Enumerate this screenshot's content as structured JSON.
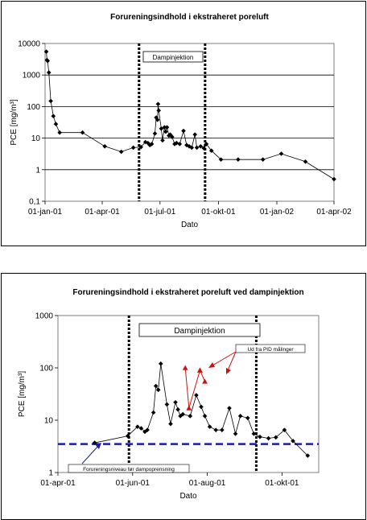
{
  "chart_data": [
    {
      "type": "line",
      "title": "Forureningsindhold i ekstraheret poreluft",
      "xlabel": "Dato",
      "ylabel": "PCE [mg/m³]",
      "yscale": "log",
      "ylim": [
        0.1,
        10000
      ],
      "xlim": [
        "2001-01-01",
        "2002-04-01"
      ],
      "yticks": [
        "0,1",
        "1",
        "10",
        "100",
        "1000",
        "10000"
      ],
      "xticks": [
        "01-jan-01",
        "01-apr-01",
        "01-jul-01",
        "01-okt-01",
        "01-jan-02",
        "01-apr-02"
      ],
      "grid": true,
      "annotations": [
        {
          "text": "Dampinjektion",
          "x": "2001-06-12"
        }
      ],
      "vlines": [
        "2001-05-29",
        "2001-09-10"
      ],
      "series": [
        {
          "color": "#000000",
          "points": [
            [
              "2001-01-03",
              5500
            ],
            [
              "2001-01-04",
              3000
            ],
            [
              "2001-01-05",
              2800
            ],
            [
              "2001-01-07",
              1200
            ],
            [
              "2001-01-10",
              150
            ],
            [
              "2001-01-14",
              50
            ],
            [
              "2001-01-18",
              28
            ],
            [
              "2001-01-24",
              15
            ],
            [
              "2001-03-01",
              15
            ],
            [
              "2001-04-05",
              5.5
            ],
            [
              "2001-05-01",
              3.7
            ],
            [
              "2001-05-20",
              5
            ],
            [
              "2001-06-01",
              5.2
            ],
            [
              "2001-06-08",
              7.5
            ],
            [
              "2001-06-12",
              7
            ],
            [
              "2001-06-15",
              6
            ],
            [
              "2001-06-18",
              6.5
            ],
            [
              "2001-06-23",
              14
            ],
            [
              "2001-06-25",
              45
            ],
            [
              "2001-06-27",
              38
            ],
            [
              "2001-06-28",
              120
            ],
            [
              "2001-06-29",
              75
            ],
            [
              "2001-07-03",
              20
            ],
            [
              "2001-07-05",
              8.5
            ],
            [
              "2001-07-08",
              22
            ],
            [
              "2001-07-10",
              16
            ],
            [
              "2001-07-12",
              22
            ],
            [
              "2001-07-15",
              12
            ],
            [
              "2001-07-17",
              13
            ],
            [
              "2001-07-20",
              11
            ],
            [
              "2001-07-24",
              6.5
            ],
            [
              "2001-07-27",
              7
            ],
            [
              "2001-08-01",
              6.5
            ],
            [
              "2001-08-07",
              17
            ],
            [
              "2001-08-12",
              6
            ],
            [
              "2001-08-16",
              5.5
            ],
            [
              "2001-08-20",
              5
            ],
            [
              "2001-08-25",
              13
            ],
            [
              "2001-08-28",
              5
            ],
            [
              "2001-09-03",
              5.5
            ],
            [
              "2001-09-08",
              4.8
            ],
            [
              "2001-09-12",
              6.5
            ],
            [
              "2001-09-20",
              4
            ],
            [
              "2001-10-05",
              2.1
            ],
            [
              "2001-11-01",
              2.1
            ],
            [
              "2001-12-10",
              2.1
            ],
            [
              "2002-01-08",
              3.2
            ],
            [
              "2002-02-15",
              1.8
            ],
            [
              "2002-04-01",
              0.5
            ]
          ]
        }
      ]
    },
    {
      "type": "line",
      "title": "Forureningsindhold i ekstraheret poreluft ved dampinjektion",
      "xlabel": "Dato",
      "ylabel": "PCE [mg/m³]",
      "yscale": "log",
      "ylim": [
        1,
        1000
      ],
      "xlim": [
        "2001-04-01",
        "2001-10-31"
      ],
      "yticks": [
        "1",
        "10",
        "100",
        "1000"
      ],
      "xticks": [
        "01-apr-01",
        "01-jun-01",
        "01-aug-01",
        "01-okt-01"
      ],
      "grid": false,
      "annotations": [
        {
          "text": "Dampinjektion",
          "x": "2001-07-01"
        },
        {
          "text": "Ud fra PID målinger",
          "x": "2001-08-12"
        },
        {
          "text": "Forureningsniveau før dampoprensning",
          "x": "2001-05-10"
        }
      ],
      "vlines": [
        "2001-05-29",
        "2001-09-10"
      ],
      "baseline": {
        "value": 3.5,
        "color": "#1c1c9c"
      },
      "series": [
        {
          "color": "#000000",
          "points": [
            [
              "2001-05-01",
              3.7
            ],
            [
              "2001-05-28",
              5
            ],
            [
              "2001-06-05",
              7.5
            ],
            [
              "2001-06-08",
              7
            ],
            [
              "2001-06-11",
              6
            ],
            [
              "2001-06-13",
              6.5
            ],
            [
              "2001-06-18",
              14
            ],
            [
              "2001-06-20",
              45
            ],
            [
              "2001-06-22",
              38
            ],
            [
              "2001-06-24",
              120
            ],
            [
              "2001-06-29",
              20
            ],
            [
              "2001-07-02",
              8.5
            ],
            [
              "2001-07-06",
              22
            ],
            [
              "2001-07-08",
              16
            ],
            [
              "2001-07-10",
              12
            ],
            [
              "2001-07-12",
              13
            ],
            [
              "2001-07-18",
              12
            ],
            [
              "2001-07-23",
              30
            ],
            [
              "2001-07-27",
              18
            ],
            [
              "2001-07-30",
              12
            ],
            [
              "2001-08-03",
              7.5
            ],
            [
              "2001-08-08",
              6.5
            ],
            [
              "2001-08-13",
              6.5
            ],
            [
              "2001-08-19",
              17
            ],
            [
              "2001-08-24",
              5.5
            ],
            [
              "2001-08-28",
              12
            ],
            [
              "2001-09-03",
              11
            ],
            [
              "2001-09-08",
              5.5
            ],
            [
              "2001-09-13",
              4.8
            ],
            [
              "2001-09-20",
              4.5
            ],
            [
              "2001-09-26",
              4.7
            ],
            [
              "2001-10-03",
              6.5
            ],
            [
              "2001-10-10",
              4
            ],
            [
              "2001-10-22",
              2.1
            ]
          ]
        },
        {
          "color": "#cc1111",
          "points": [
            [
              "2001-07-14",
              100
            ],
            [
              "2001-07-17",
              17
            ],
            [
              "2001-07-26",
              90
            ],
            [
              "2001-07-30",
              55
            ],
            [
              "2001-07-26",
              90
            ]
          ]
        }
      ]
    }
  ]
}
